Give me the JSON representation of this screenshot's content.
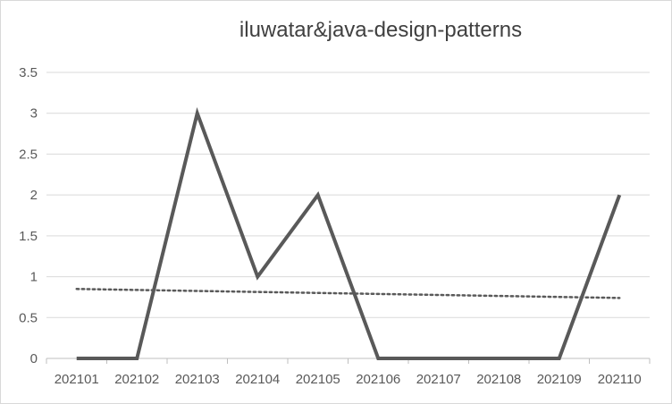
{
  "chart_data": {
    "type": "line",
    "title": "iluwatar&java-design-patterns",
    "categories": [
      "202101",
      "202102",
      "202103",
      "202104",
      "202105",
      "202106",
      "202107",
      "202108",
      "202109",
      "202110"
    ],
    "series": [
      {
        "values": [
          0,
          0,
          3,
          1,
          2,
          0,
          0,
          0,
          0,
          2
        ],
        "color": "#595959",
        "style": "solid"
      }
    ],
    "trendline": {
      "type": "linear",
      "values_start": 0.85,
      "values_end": 0.74,
      "color": "#595959",
      "style": "dotted"
    },
    "ylim": [
      0,
      3.5
    ],
    "yticks": [
      "0",
      "0.5",
      "1",
      "1.5",
      "2",
      "2.5",
      "3",
      "3.5"
    ],
    "grid": true,
    "legend": "none"
  }
}
